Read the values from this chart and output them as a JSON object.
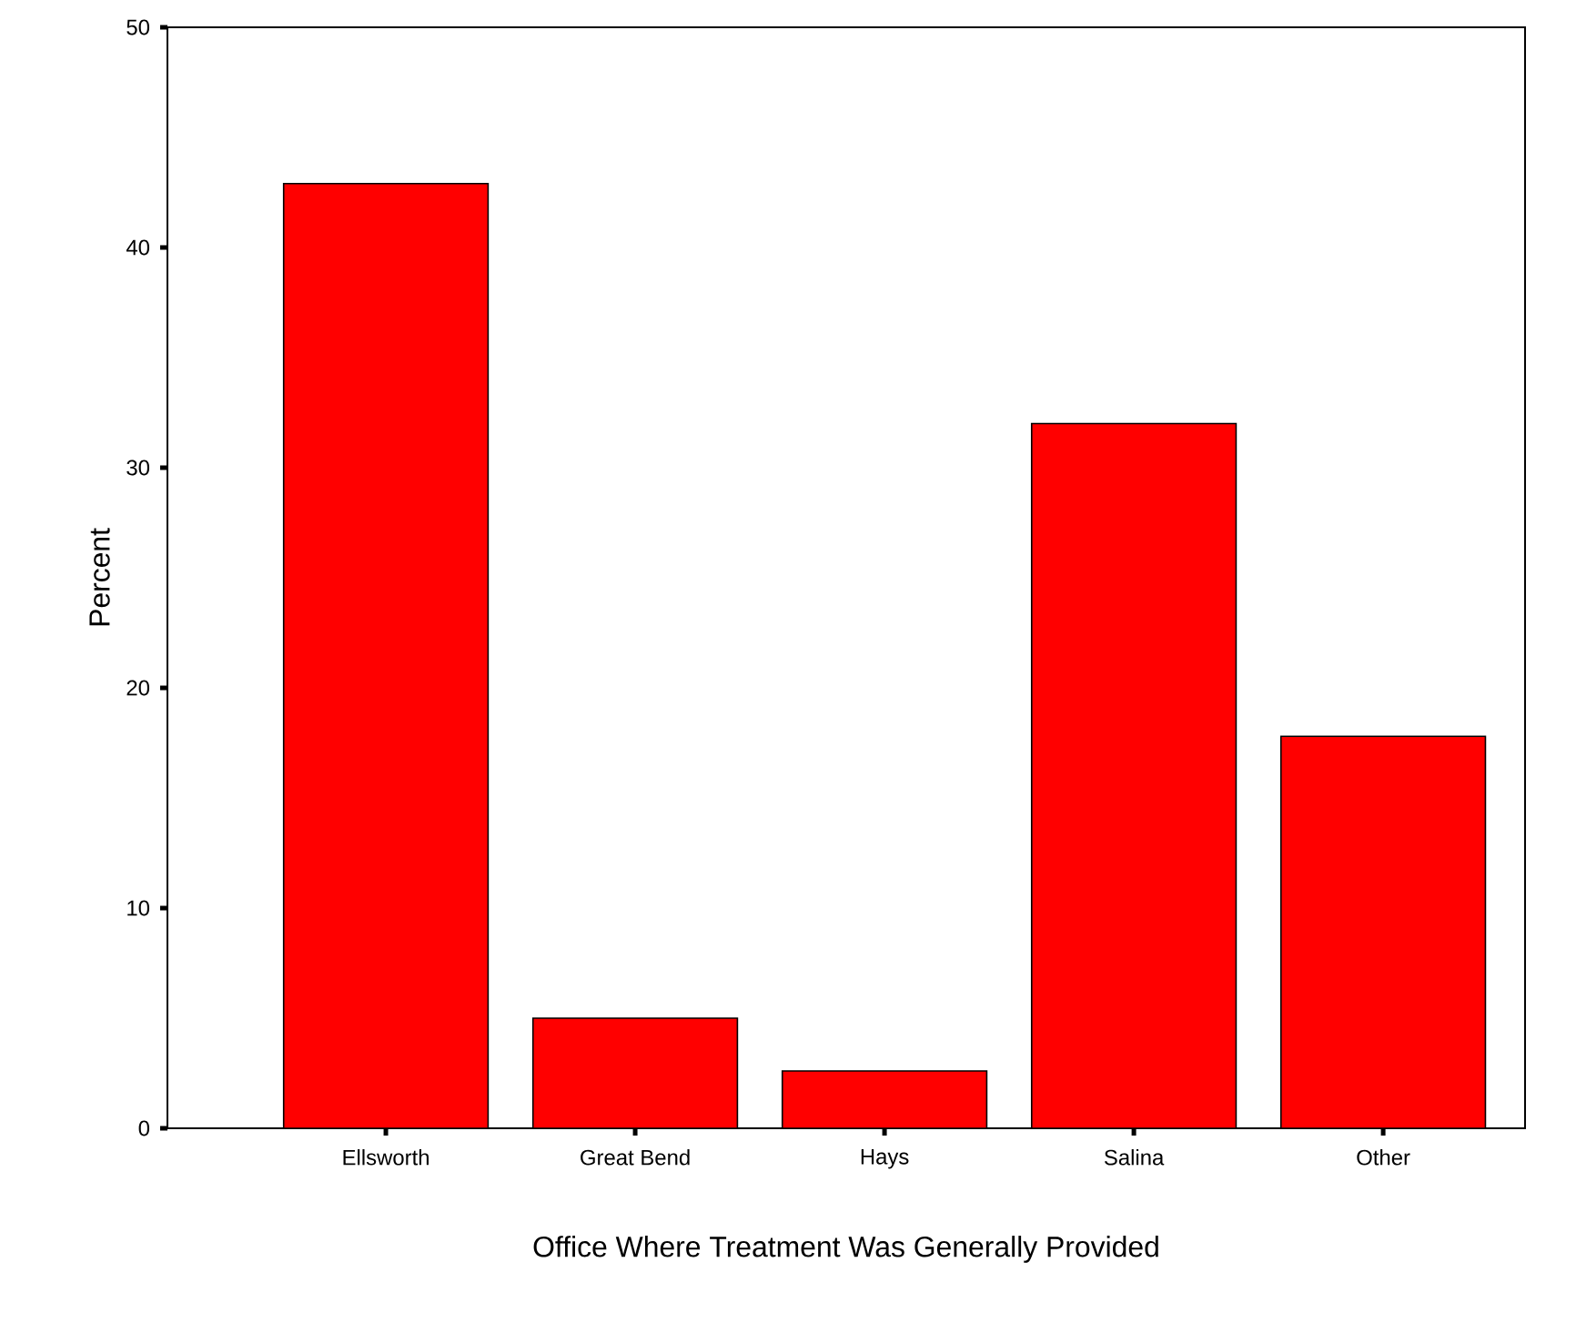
{
  "chart_data": {
    "type": "bar",
    "xlabel": "Office Where Treatment Was Generally Provided",
    "ylabel": "Percent",
    "categories": [
      "Ellsworth",
      "Great Bend",
      "Hays",
      "Salina",
      "Other"
    ],
    "values": [
      42.9,
      5.0,
      2.6,
      32.0,
      17.8
    ],
    "color": "#ff0000",
    "ylim": [
      0,
      50
    ],
    "yticks": [
      0,
      10,
      20,
      30,
      40,
      50
    ],
    "grid": false
  }
}
